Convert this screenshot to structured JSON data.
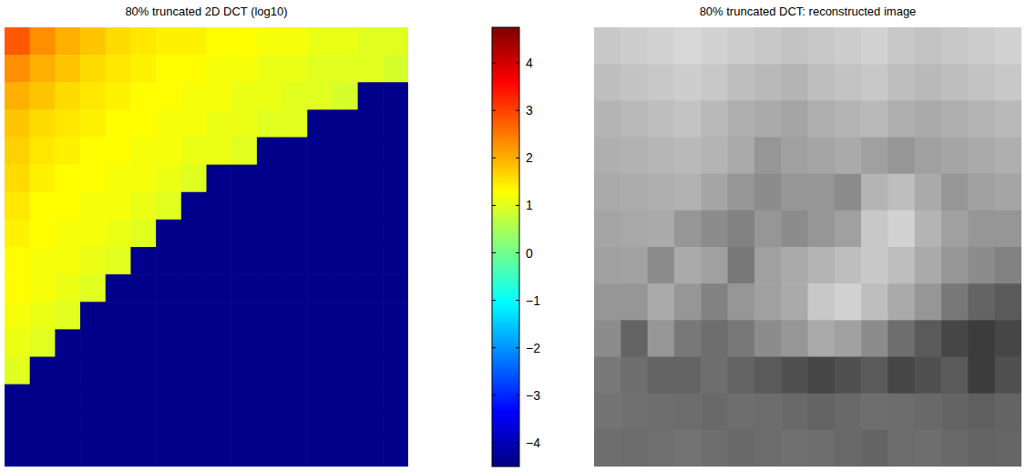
{
  "chart_data": [
    {
      "type": "heatmap",
      "title": "80% truncated 2D DCT (log10)",
      "tick_labels": false,
      "cells": [
        [
          2.8,
          2.3,
          2.0,
          1.8,
          1.6,
          1.5,
          1.4,
          1.4,
          1.3,
          1.3,
          1.2,
          1.2,
          1.1,
          1.1,
          1.0,
          1.0
        ],
        [
          2.3,
          2.0,
          1.8,
          1.6,
          1.5,
          1.4,
          1.3,
          1.3,
          1.2,
          1.2,
          1.1,
          1.1,
          1.0,
          1.0,
          1.0,
          0.9
        ],
        [
          2.0,
          1.8,
          1.6,
          1.5,
          1.4,
          1.3,
          1.3,
          1.2,
          1.2,
          1.1,
          1.1,
          1.0,
          1.0,
          0.9,
          -4.4,
          -4.4
        ],
        [
          1.8,
          1.6,
          1.5,
          1.4,
          1.3,
          1.3,
          1.2,
          1.2,
          1.1,
          1.1,
          1.0,
          1.0,
          -4.4,
          -4.4,
          -4.4,
          -4.4
        ],
        [
          1.7,
          1.5,
          1.4,
          1.3,
          1.3,
          1.2,
          1.2,
          1.1,
          1.1,
          1.0,
          -4.4,
          -4.4,
          -4.4,
          -4.4,
          -4.4,
          -4.4
        ],
        [
          1.6,
          1.4,
          1.3,
          1.3,
          1.2,
          1.2,
          1.1,
          1.0,
          -4.4,
          -4.4,
          -4.4,
          -4.4,
          -4.4,
          -4.4,
          -4.4,
          -4.4
        ],
        [
          1.5,
          1.3,
          1.3,
          1.2,
          1.2,
          1.1,
          1.0,
          -4.4,
          -4.4,
          -4.4,
          -4.4,
          -4.4,
          -4.4,
          -4.4,
          -4.4,
          -4.4
        ],
        [
          1.4,
          1.3,
          1.2,
          1.2,
          1.1,
          1.0,
          -4.4,
          -4.4,
          -4.4,
          -4.4,
          -4.4,
          -4.4,
          -4.4,
          -4.4,
          -4.4,
          -4.4
        ],
        [
          1.3,
          1.2,
          1.2,
          1.1,
          1.0,
          -4.4,
          -4.4,
          -4.4,
          -4.4,
          -4.4,
          -4.4,
          -4.4,
          -4.4,
          -4.4,
          -4.4,
          -4.4
        ],
        [
          1.3,
          1.2,
          1.1,
          1.0,
          -4.4,
          -4.4,
          -4.4,
          -4.4,
          -4.4,
          -4.4,
          -4.4,
          -4.4,
          -4.4,
          -4.4,
          -4.4,
          -4.4
        ],
        [
          1.2,
          1.1,
          1.0,
          -4.4,
          -4.4,
          -4.4,
          -4.4,
          -4.4,
          -4.4,
          -4.4,
          -4.4,
          -4.4,
          -4.4,
          -4.4,
          -4.4,
          -4.4
        ],
        [
          1.1,
          1.0,
          -4.4,
          -4.4,
          -4.4,
          -4.4,
          -4.4,
          -4.4,
          -4.4,
          -4.4,
          -4.4,
          -4.4,
          -4.4,
          -4.4,
          -4.4,
          -4.4
        ],
        [
          1.0,
          -4.4,
          -4.4,
          -4.4,
          -4.4,
          -4.4,
          -4.4,
          -4.4,
          -4.4,
          -4.4,
          -4.4,
          -4.4,
          -4.4,
          -4.4,
          -4.4,
          -4.4
        ],
        [
          -4.4,
          -4.4,
          -4.4,
          -4.4,
          -4.4,
          -4.4,
          -4.4,
          -4.4,
          -4.4,
          -4.4,
          -4.4,
          -4.4,
          -4.4,
          -4.4,
          -4.4,
          -4.4
        ],
        [
          -4.4,
          -4.4,
          -4.4,
          -4.4,
          -4.4,
          -4.4,
          -4.4,
          -4.4,
          -4.4,
          -4.4,
          -4.4,
          -4.4,
          -4.4,
          -4.4,
          -4.4,
          -4.4
        ],
        [
          -4.4,
          -4.4,
          -4.4,
          -4.4,
          -4.4,
          -4.4,
          -4.4,
          -4.4,
          -4.4,
          -4.4,
          -4.4,
          -4.4,
          -4.4,
          -4.4,
          -4.4,
          -4.4
        ]
      ],
      "colorbar": {
        "range": [
          -4.5,
          4.75
        ],
        "ticks": [
          4,
          3,
          2,
          1,
          0,
          -1,
          -2,
          -3,
          -4
        ]
      }
    },
    {
      "type": "image",
      "title": "80% truncated DCT: reconstructed image",
      "tick_labels": false,
      "pixel_range": [
        0,
        255
      ],
      "pixels": [
        [
          200,
          205,
          210,
          215,
          210,
          205,
          200,
          195,
          200,
          205,
          210,
          200,
          195,
          200,
          205,
          210
        ],
        [
          190,
          195,
          200,
          205,
          200,
          190,
          185,
          180,
          190,
          195,
          200,
          190,
          185,
          190,
          195,
          200
        ],
        [
          180,
          185,
          190,
          195,
          185,
          175,
          170,
          165,
          175,
          180,
          185,
          175,
          170,
          175,
          180,
          185
        ],
        [
          175,
          178,
          182,
          185,
          180,
          170,
          150,
          160,
          165,
          170,
          160,
          150,
          160,
          165,
          170,
          175
        ],
        [
          170,
          172,
          175,
          178,
          165,
          150,
          140,
          150,
          150,
          140,
          180,
          190,
          170,
          150,
          160,
          165
        ],
        [
          165,
          168,
          170,
          150,
          140,
          130,
          150,
          140,
          150,
          160,
          200,
          210,
          180,
          160,
          150,
          150
        ],
        [
          160,
          162,
          140,
          170,
          160,
          120,
          160,
          170,
          180,
          190,
          200,
          190,
          170,
          150,
          140,
          130
        ],
        [
          150,
          150,
          170,
          150,
          130,
          150,
          160,
          170,
          200,
          210,
          190,
          170,
          150,
          120,
          100,
          90
        ],
        [
          140,
          100,
          150,
          120,
          110,
          120,
          140,
          150,
          170,
          160,
          140,
          110,
          90,
          70,
          60,
          70
        ],
        [
          120,
          110,
          100,
          100,
          110,
          100,
          90,
          80,
          70,
          80,
          90,
          70,
          80,
          90,
          60,
          80
        ],
        [
          115,
          112,
          110,
          108,
          105,
          110,
          108,
          105,
          100,
          105,
          110,
          108,
          105,
          100,
          95,
          100
        ],
        [
          110,
          108,
          112,
          115,
          110,
          105,
          108,
          112,
          110,
          105,
          100,
          108,
          110,
          105,
          100,
          102
        ]
      ]
    }
  ]
}
